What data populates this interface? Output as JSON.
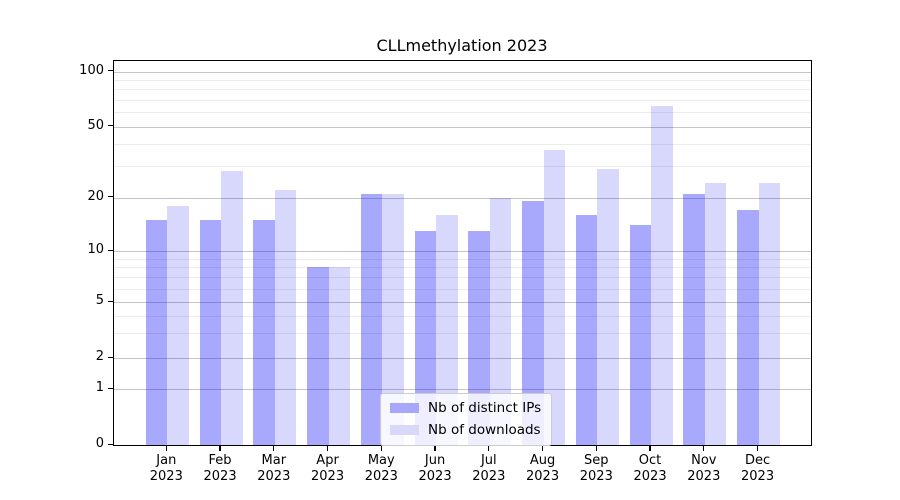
{
  "chart_data": {
    "type": "bar",
    "title": "CLLmethylation 2023",
    "categories": [
      "Jan",
      "Feb",
      "Mar",
      "Apr",
      "May",
      "Jun",
      "Jul",
      "Aug",
      "Sep",
      "Oct",
      "Nov",
      "Dec"
    ],
    "category_year": "2023",
    "series": [
      {
        "name": "Nb of distinct IPs",
        "color": "#a8a8fa",
        "values": [
          15,
          15,
          15,
          8,
          21,
          13,
          13,
          19,
          16,
          14,
          21,
          17
        ]
      },
      {
        "name": "Nb of downloads",
        "color": "#d8d8fa",
        "values": [
          18,
          28,
          22,
          8,
          21,
          16,
          20,
          37,
          29,
          65,
          24,
          24
        ]
      }
    ],
    "y_axis": {
      "scale": "symlog",
      "ticks": [
        0,
        1,
        2,
        5,
        10,
        20,
        50,
        100
      ],
      "minor_ticks": [
        3,
        4,
        6,
        7,
        8,
        9,
        30,
        40,
        60,
        70,
        80,
        90
      ],
      "range": [
        0,
        116
      ]
    },
    "x_axis": {
      "label_format": "month over year"
    },
    "grid": "horizontal major and minor",
    "legend": {
      "position": "lower center",
      "entries": [
        "Nb of distinct IPs",
        "Nb of downloads"
      ]
    }
  }
}
